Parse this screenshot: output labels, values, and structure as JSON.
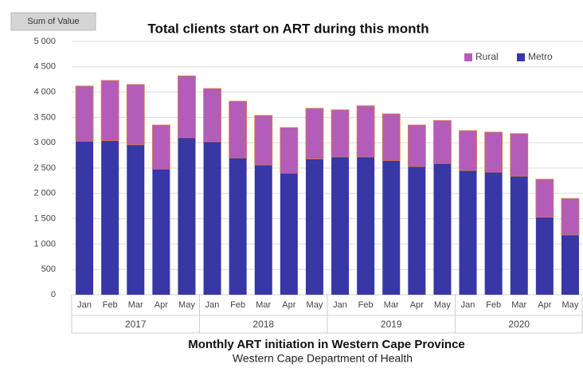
{
  "chart_data": {
    "type": "stacked_bar",
    "button": "Sum of Value",
    "title": "Total clients start on ART during this month",
    "categories": [
      "Jan",
      "Feb",
      "Mar",
      "Apr",
      "May",
      "Jan",
      "Feb",
      "Mar",
      "Apr",
      "May",
      "Jan",
      "Feb",
      "Mar",
      "Apr",
      "May",
      "Jan",
      "Feb",
      "Mar",
      "Apr",
      "May"
    ],
    "groups": [
      "2017",
      "2018",
      "2019",
      "2020"
    ],
    "series": [
      {
        "name": "Metro",
        "color": "#3737a6",
        "values": [
          3030,
          3040,
          2960,
          2480,
          3100,
          3020,
          2700,
          2560,
          2400,
          2680,
          2720,
          2720,
          2650,
          2530,
          2590,
          2450,
          2420,
          2340,
          1530,
          1180
        ]
      },
      {
        "name": "Rural",
        "color": "#b35db8",
        "values": [
          1090,
          1190,
          1190,
          870,
          1220,
          1050,
          1120,
          980,
          900,
          1000,
          930,
          1010,
          920,
          820,
          850,
          790,
          790,
          840,
          750,
          720
        ]
      }
    ],
    "ylim": [
      0,
      5000
    ],
    "yticks": [
      0,
      500,
      {
        "value": 1000,
        "label": "1 000"
      },
      {
        "value": 1500,
        "label": "1 500"
      },
      {
        "value": 2000,
        "label": "2 000"
      },
      {
        "value": 2500,
        "label": "2 500"
      },
      {
        "value": 3000,
        "label": "3 000"
      },
      {
        "value": 3500,
        "label": "3 500"
      },
      {
        "value": 4000,
        "label": "4 000"
      },
      {
        "value": 4500,
        "label": "4 500"
      },
      {
        "value": 5000,
        "label": "5 000"
      }
    ],
    "grid": true,
    "legend": "top-right",
    "caption": "Monthly ART initiation in Western Cape Province",
    "source": "Western Cape Department of Health"
  }
}
